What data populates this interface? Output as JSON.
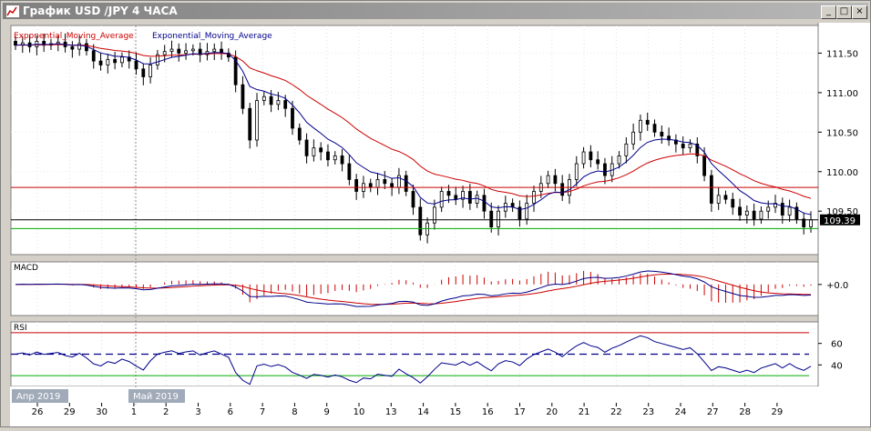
{
  "window": {
    "title": "График USD /JPY  4 ЧАСА",
    "buttons": [
      "_",
      "□",
      "×"
    ]
  },
  "chart_data": {
    "type": "candlestick",
    "symbol": "USD/JPY",
    "timeframe": "4 ЧАСА",
    "indicators": [
      "Exponential_Moving_Average",
      "Exponential_Moving_Average"
    ],
    "price_axis": {
      "ticks": [
        "111.50",
        "111.00",
        "110.50",
        "110.00",
        "109.50"
      ],
      "current": "109.39",
      "ylim": [
        108.95,
        111.85
      ]
    },
    "x_labels": [
      "26",
      "29",
      "30",
      "1",
      "2",
      "3",
      "6",
      "7",
      "8",
      "9",
      "10",
      "13",
      "14",
      "15",
      "16",
      "17",
      "20",
      "21",
      "22",
      "23",
      "24",
      "27",
      "28",
      "29"
    ],
    "month_labels": [
      "Апр 2019",
      "Май 2019"
    ],
    "closes": [
      111.6,
      111.63,
      111.58,
      111.65,
      111.6,
      111.62,
      111.64,
      111.58,
      111.55,
      111.62,
      111.53,
      111.4,
      111.35,
      111.42,
      111.38,
      111.45,
      111.4,
      111.3,
      111.2,
      111.35,
      111.48,
      111.52,
      111.55,
      111.5,
      111.53,
      111.55,
      111.48,
      111.52,
      111.55,
      111.5,
      111.45,
      111.1,
      110.8,
      110.4,
      110.9,
      110.95,
      110.85,
      110.9,
      110.8,
      110.55,
      110.4,
      110.2,
      110.3,
      110.25,
      110.15,
      110.2,
      110.1,
      109.9,
      109.75,
      109.85,
      109.8,
      109.9,
      109.85,
      109.8,
      109.95,
      109.75,
      109.55,
      109.2,
      109.35,
      109.55,
      109.75,
      109.7,
      109.65,
      109.75,
      109.6,
      109.7,
      109.5,
      109.3,
      109.5,
      109.6,
      109.55,
      109.4,
      109.6,
      109.75,
      109.85,
      109.95,
      109.85,
      109.7,
      109.9,
      110.1,
      110.25,
      110.15,
      110.1,
      109.95,
      110.1,
      110.2,
      110.35,
      110.5,
      110.65,
      110.6,
      110.5,
      110.45,
      110.4,
      110.35,
      110.3,
      110.35,
      110.2,
      109.95,
      109.6,
      109.7,
      109.65,
      109.55,
      109.45,
      109.5,
      109.4,
      109.5,
      109.55,
      109.6,
      109.45,
      109.55,
      109.4,
      109.3,
      109.39
    ],
    "rsi_levels": [
      "60",
      "40"
    ],
    "macd_level": "+0.0",
    "panels": [
      "MACD",
      "RSI"
    ],
    "colors": {
      "ema_slow": "#cc0000",
      "ema_fast": "#00008b",
      "candle": "#000000",
      "upper_line": "#cc0000",
      "lower_line": "#00aa00",
      "cur_line": "#000000",
      "macd_hist": "#cc0000",
      "grid": "#a0a0a0"
    }
  }
}
